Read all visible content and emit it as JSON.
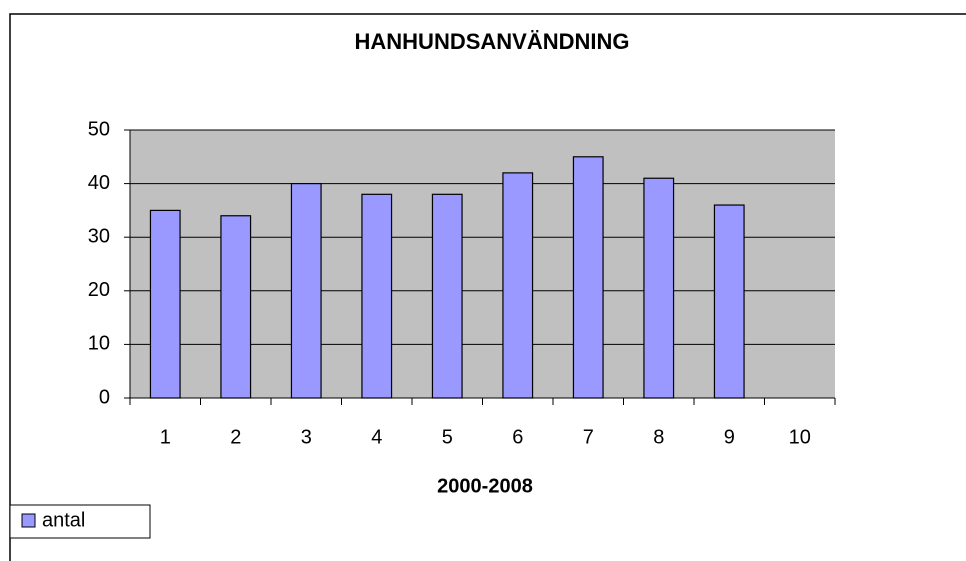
{
  "chart_data": {
    "type": "bar",
    "title": "HANHUNDSANVÄNDNING",
    "x_label": "2000-2008",
    "categories": [
      "1",
      "2",
      "3",
      "4",
      "5",
      "6",
      "7",
      "8",
      "9",
      "10"
    ],
    "series": [
      {
        "name": "antal",
        "color": "#9999ff",
        "values": [
          35,
          34,
          40,
          38,
          38,
          42,
          45,
          41,
          36,
          null
        ]
      }
    ],
    "ylim": [
      0,
      50
    ],
    "yticks": [
      0,
      10,
      20,
      30,
      40,
      50
    ],
    "grid": true,
    "plot_background": "#c0c0c0",
    "legend": "bottom-left"
  }
}
